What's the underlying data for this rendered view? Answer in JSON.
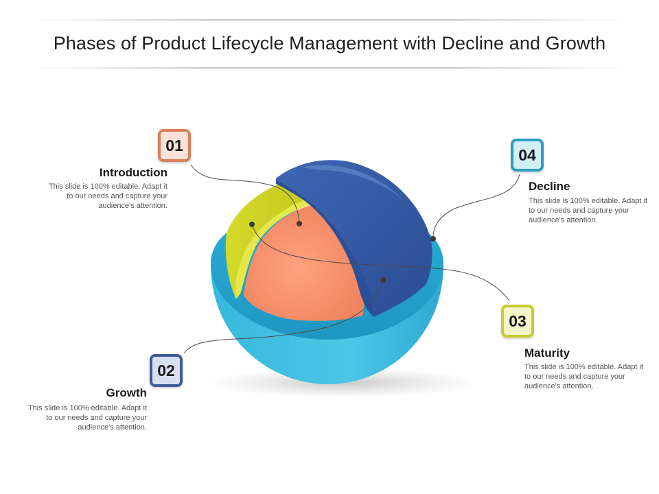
{
  "title": "Phases of Product Lifecycle Management with Decline and Growth",
  "phases": [
    {
      "number": "01",
      "name": "Introduction",
      "description": "This slide is 100% editable. Adapt it to our needs and capture your audience's attention.",
      "color": "#d9805a"
    },
    {
      "number": "02",
      "name": "Growth",
      "description": "This slide is 100% editable. Adapt it to our needs and capture your audience's attention.",
      "color": "#3f5b97"
    },
    {
      "number": "03",
      "name": "Maturity",
      "description": "This slide is 100% editable. Adapt it to our needs and capture your audience's attention.",
      "color": "#c6cc2e"
    },
    {
      "number": "04",
      "name": "Decline",
      "description": "This slide is 100% editable. Adapt it to our needs and capture your audience's attention.",
      "color": "#2b9fc0"
    }
  ]
}
